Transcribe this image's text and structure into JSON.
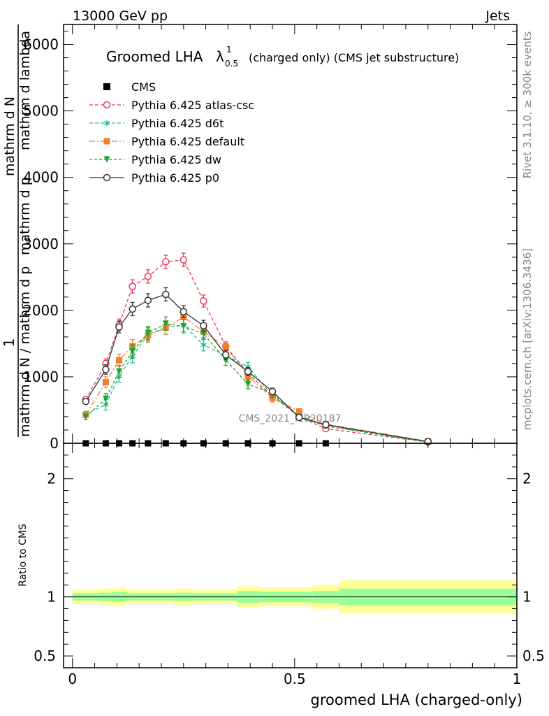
{
  "header": {
    "left": "13000 GeV pp",
    "right": "Jets"
  },
  "side_labels": {
    "rivet": "Rivet 3.1.10, ≥ 300k events",
    "mcplots": "mcplots.cern.ch [arXiv:1306.3436]"
  },
  "watermark": "CMS_2021_I1920187",
  "chart_data": [
    {
      "type": "line",
      "title_main": "Groomed LHA",
      "title_lambda": "λ",
      "title_sup": "1",
      "title_sub": "0.5",
      "title_rest": "(charged only) (CMS jet substructure)",
      "ylabel_pieces": [
        "1",
        "mathrm d N / mathrm d p",
        "mathrm d N",
        "mathrm d p",
        "mathrm d lambda"
      ],
      "ylim": [
        0,
        6300
      ],
      "yticks": [
        0,
        1000,
        2000,
        3000,
        4000,
        5000,
        6000
      ],
      "ytick_labels": [
        "0",
        "1000",
        "2000",
        "3000",
        "4000",
        "5000",
        "6000"
      ],
      "xlim": [
        -0.02,
        1.0
      ],
      "xlabel": "groomed LHA (charged-only)",
      "legend_position": "top-left",
      "cms": {
        "name": "CMS",
        "color": "#000000",
        "x": [
          0.03,
          0.075,
          0.105,
          0.135,
          0.17,
          0.21,
          0.25,
          0.295,
          0.345,
          0.395,
          0.45,
          0.51,
          0.57
        ],
        "y": [
          0,
          0,
          0,
          0,
          0,
          0,
          0,
          0,
          0,
          0,
          0,
          0,
          0
        ]
      },
      "series": [
        {
          "name": "Pythia 6.425 atlas-csc",
          "color": "#e8385a",
          "dash": "5,3",
          "marker": "open-circle",
          "x": [
            0.03,
            0.075,
            0.105,
            0.135,
            0.17,
            0.21,
            0.25,
            0.295,
            0.345,
            0.395,
            0.45,
            0.51,
            0.57,
            0.8
          ],
          "y": [
            660,
            1200,
            1780,
            2360,
            2510,
            2730,
            2760,
            2140,
            1460,
            1050,
            710,
            400,
            220,
            20
          ],
          "err": [
            40,
            70,
            90,
            100,
            100,
            100,
            100,
            90,
            70,
            60,
            50,
            40,
            30,
            10
          ]
        },
        {
          "name": "Pythia 6.425 d6t",
          "color": "#1ec08a",
          "dash": "5,3",
          "marker": "star",
          "x": [
            0.03,
            0.075,
            0.105,
            0.135,
            0.17,
            0.21,
            0.25,
            0.295,
            0.345,
            0.395,
            0.45,
            0.51,
            0.57,
            0.8
          ],
          "y": [
            440,
            580,
            1010,
            1310,
            1640,
            1740,
            1780,
            1480,
            1320,
            1150,
            720,
            420,
            260,
            20
          ],
          "err": [
            40,
            80,
            90,
            100,
            100,
            100,
            100,
            90,
            80,
            70,
            60,
            40,
            30,
            10
          ]
        },
        {
          "name": "Pythia 6.425 default",
          "color": "#f08030",
          "dash": "8,3,2,3",
          "marker": "square",
          "x": [
            0.03,
            0.075,
            0.105,
            0.135,
            0.17,
            0.21,
            0.25,
            0.295,
            0.345,
            0.395,
            0.45,
            0.51,
            0.57,
            0.8
          ],
          "y": [
            430,
            920,
            1250,
            1460,
            1620,
            1740,
            1900,
            1680,
            1450,
            1010,
            680,
            480,
            290,
            30
          ],
          "err": [
            40,
            80,
            90,
            100,
            100,
            100,
            100,
            90,
            80,
            70,
            60,
            40,
            30,
            10
          ]
        },
        {
          "name": "Pythia 6.425 dw",
          "color": "#18a828",
          "dash": "4,3",
          "marker": "triangle-down",
          "x": [
            0.03,
            0.075,
            0.105,
            0.135,
            0.17,
            0.21,
            0.25,
            0.295,
            0.345,
            0.395,
            0.45,
            0.51,
            0.57,
            0.8
          ],
          "y": [
            400,
            670,
            1080,
            1380,
            1660,
            1800,
            1760,
            1650,
            1250,
            890,
            750,
            400,
            260,
            20
          ],
          "err": [
            40,
            80,
            90,
            100,
            100,
            100,
            100,
            90,
            80,
            70,
            60,
            40,
            30,
            10
          ]
        },
        {
          "name": "Pythia 6.425 p0",
          "color": "#333333",
          "dash": "",
          "marker": "open-circle",
          "x": [
            0.03,
            0.075,
            0.105,
            0.135,
            0.17,
            0.21,
            0.25,
            0.295,
            0.345,
            0.395,
            0.45,
            0.51,
            0.57,
            0.8
          ],
          "y": [
            630,
            1110,
            1750,
            2020,
            2150,
            2240,
            1980,
            1770,
            1330,
            1080,
            780,
            390,
            280,
            25
          ],
          "err": [
            40,
            70,
            90,
            100,
            100,
            100,
            90,
            80,
            70,
            60,
            50,
            40,
            30,
            10
          ]
        }
      ]
    },
    {
      "type": "area",
      "ylabel": "Ratio to CMS",
      "ylim": [
        0.4,
        2.3
      ],
      "yticks": [
        0.5,
        1,
        2
      ],
      "ytick_labels": [
        "0.5",
        "1",
        "2"
      ],
      "xlim": [
        -0.02,
        1.0
      ],
      "xticks": [
        0,
        0.5,
        1
      ],
      "xtick_labels": [
        "0",
        "0.5",
        "1"
      ],
      "bands": {
        "edges": [
          0,
          0.06,
          0.09,
          0.12,
          0.15,
          0.19,
          0.23,
          0.27,
          0.32,
          0.37,
          0.42,
          0.48,
          0.54,
          0.6,
          1.0
        ],
        "inner_color": "#99ff99",
        "outer_color": "#ffff99",
        "inner_lo": [
          0.97,
          0.965,
          0.96,
          0.97,
          0.97,
          0.97,
          0.965,
          0.97,
          0.97,
          0.95,
          0.955,
          0.955,
          0.95,
          0.93
        ],
        "inner_hi": [
          1.03,
          1.035,
          1.04,
          1.03,
          1.03,
          1.03,
          1.035,
          1.03,
          1.03,
          1.05,
          1.045,
          1.045,
          1.05,
          1.07
        ],
        "outer_lo": [
          0.94,
          0.93,
          0.92,
          0.94,
          0.94,
          0.94,
          0.93,
          0.94,
          0.94,
          0.91,
          0.92,
          0.92,
          0.9,
          0.86
        ],
        "outer_hi": [
          1.06,
          1.07,
          1.08,
          1.06,
          1.06,
          1.06,
          1.07,
          1.06,
          1.06,
          1.09,
          1.08,
          1.08,
          1.1,
          1.14
        ]
      }
    }
  ]
}
